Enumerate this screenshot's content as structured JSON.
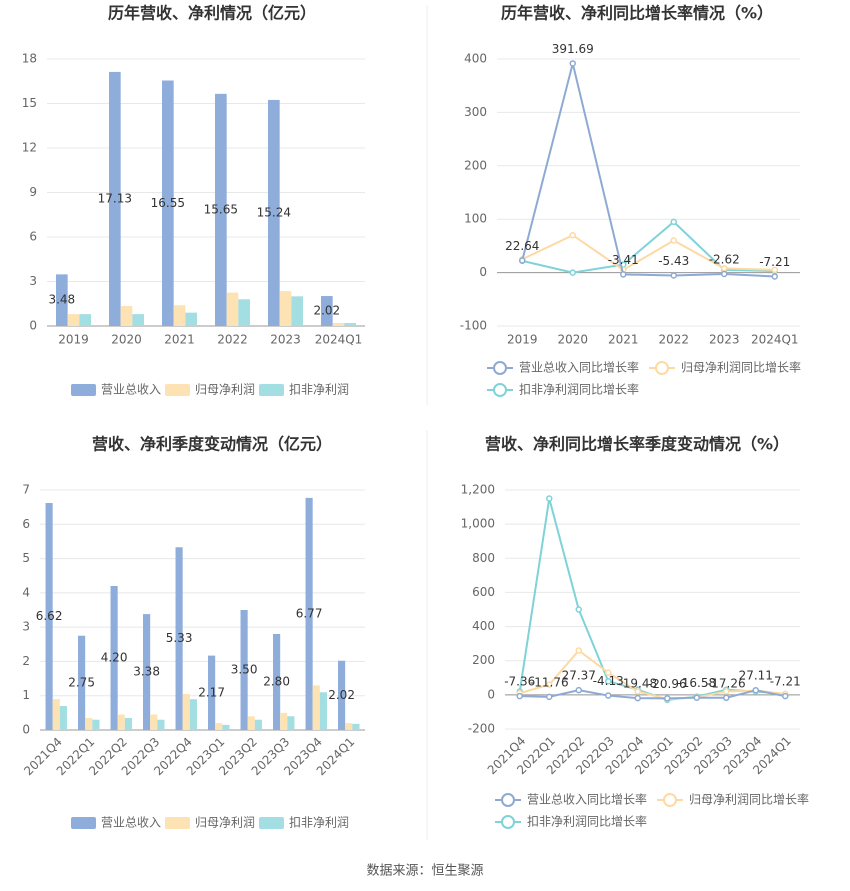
{
  "chart_data": [
    {
      "type": "bar",
      "title": "历年营收、净利情况（亿元）",
      "categories": [
        "2019",
        "2020",
        "2021",
        "2022",
        "2023",
        "2024Q1"
      ],
      "series": [
        {
          "name": "营业总收入",
          "color": "#8eaddb",
          "values": [
            3.48,
            17.13,
            16.55,
            15.65,
            15.24,
            2.02
          ],
          "show_labels": true
        },
        {
          "name": "归母净利润",
          "color": "#fde2b4",
          "values": [
            0.8,
            1.35,
            1.4,
            2.25,
            2.35,
            0.2
          ]
        },
        {
          "name": "扣非净利润",
          "color": "#a3dfe2",
          "values": [
            0.8,
            0.8,
            0.9,
            1.8,
            2.0,
            0.2
          ]
        }
      ],
      "ylim": [
        0,
        18
      ],
      "yticks": [
        0,
        3,
        6,
        9,
        12,
        15,
        18
      ],
      "grid": true
    },
    {
      "type": "line",
      "title": "历年营收、净利同比增长率情况（%）",
      "categories": [
        "2019",
        "2020",
        "2021",
        "2022",
        "2023",
        "2024Q1"
      ],
      "series": [
        {
          "name": "营业总收入同比增长率",
          "color": "#8eaad3",
          "values": [
            22.64,
            391.69,
            -3.41,
            -5.43,
            -2.62,
            -7.21
          ],
          "show_labels": true
        },
        {
          "name": "归母净利润同比增长率",
          "color": "#fdd9a3",
          "values": [
            25,
            70,
            5,
            60,
            8,
            5
          ]
        },
        {
          "name": "扣非净利润同比增长率",
          "color": "#7fd3d8",
          "values": [
            22,
            0,
            15,
            95,
            5,
            3
          ]
        }
      ],
      "ylim": [
        -100,
        400
      ],
      "yticks": [
        -100,
        0,
        100,
        200,
        300,
        400
      ],
      "grid": true
    },
    {
      "type": "bar",
      "title": "营收、净利季度变动情况（亿元）",
      "categories": [
        "2021Q4",
        "2022Q1",
        "2022Q2",
        "2022Q3",
        "2022Q4",
        "2023Q1",
        "2023Q2",
        "2023Q3",
        "2023Q4",
        "2024Q1"
      ],
      "series": [
        {
          "name": "营业总收入",
          "color": "#8eaddb",
          "values": [
            6.62,
            2.75,
            4.2,
            3.38,
            5.33,
            2.17,
            3.5,
            2.8,
            6.77,
            2.02
          ],
          "value_labels": [
            "6.62",
            "2.75",
            "4.20",
            "3.38",
            "5.33",
            "2.17",
            "3.50",
            "2.80",
            "6.77",
            "2.02"
          ],
          "show_labels": true
        },
        {
          "name": "归母净利润",
          "color": "#fde2b4",
          "values": [
            0.9,
            0.35,
            0.45,
            0.45,
            1.05,
            0.2,
            0.4,
            0.5,
            1.3,
            0.2
          ]
        },
        {
          "name": "扣非净利润",
          "color": "#a3dfe2",
          "values": [
            0.7,
            0.3,
            0.35,
            0.3,
            0.9,
            0.15,
            0.3,
            0.4,
            1.1,
            0.18
          ]
        }
      ],
      "ylim": [
        0,
        7
      ],
      "yticks": [
        0,
        1,
        2,
        3,
        4,
        5,
        6,
        7
      ],
      "grid": true,
      "rotate_labels": true
    },
    {
      "type": "line",
      "title": "营收、净利同比增长率季度变动情况（%）",
      "categories": [
        "2021Q4",
        "2022Q1",
        "2022Q2",
        "2022Q3",
        "2022Q4",
        "2023Q1",
        "2023Q2",
        "2023Q3",
        "2023Q4",
        "2024Q1"
      ],
      "series": [
        {
          "name": "营业总收入同比增长率",
          "color": "#8eaad3",
          "values": [
            -7.36,
            -11.76,
            27.37,
            -4.13,
            -19.48,
            -20.96,
            -16.58,
            -17.26,
            27.11,
            -7.21
          ],
          "show_labels": true
        },
        {
          "name": "归母净利润同比增长率",
          "color": "#fdd9a3",
          "values": [
            10,
            60,
            260,
            130,
            20,
            -25,
            -15,
            20,
            25,
            5
          ]
        },
        {
          "name": "扣非净利润同比增长率",
          "color": "#7fd3d8",
          "values": [
            20,
            1150,
            500,
            80,
            30,
            -30,
            -10,
            30,
            20,
            5
          ]
        }
      ],
      "ylim": [
        -200,
        1200
      ],
      "yticks": [
        -200,
        0,
        200,
        400,
        600,
        800,
        {
          "value": 1000,
          "label": "1,000"
        },
        {
          "value": 1200,
          "label": "1,200"
        }
      ],
      "grid": true,
      "rotate_labels": true
    }
  ],
  "source": "数据来源：恒生聚源"
}
